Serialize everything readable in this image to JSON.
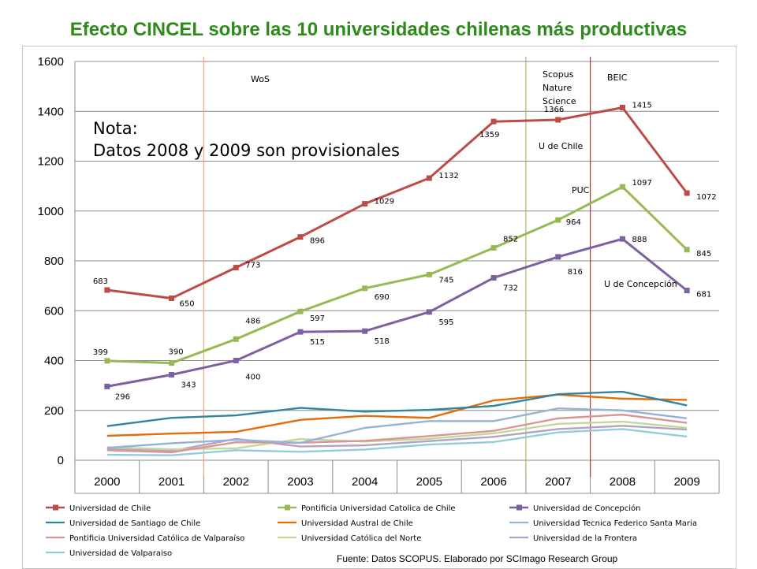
{
  "chart_data": {
    "type": "line",
    "title": "Efecto CINCEL sobre las 10 universidades chilenas más productivas",
    "x": [
      "2000",
      "2001",
      "2002",
      "2003",
      "2004",
      "2005",
      "2006",
      "2007",
      "2008",
      "2009"
    ],
    "ylim": [
      0,
      1600
    ],
    "yticks": [
      0,
      200,
      400,
      600,
      800,
      1000,
      1200,
      1400,
      1600
    ],
    "grid": true,
    "legend_position": "bottom",
    "series": [
      {
        "name": "Universidad de Chile",
        "color": "#be4b48",
        "marker": true,
        "values": [
          683,
          650,
          773,
          896,
          1029,
          1132,
          1359,
          1366,
          1415,
          1072
        ],
        "labels": [
          "683",
          "650",
          "773",
          "896",
          "1029",
          "1132",
          "1359",
          "1366",
          "1415",
          "1072"
        ]
      },
      {
        "name": "Pontificia Universidad Catolica de Chile",
        "color": "#98b954",
        "marker": true,
        "values": [
          399,
          390,
          486,
          597,
          690,
          745,
          852,
          964,
          1097,
          845
        ],
        "labels": [
          "399",
          "390",
          "486",
          "597",
          "690",
          "745",
          "852",
          "964",
          "1097",
          "845"
        ]
      },
      {
        "name": "Universidad de Concepción",
        "color": "#7d60a0",
        "marker": true,
        "values": [
          296,
          343,
          400,
          515,
          518,
          595,
          732,
          816,
          888,
          681
        ],
        "labels": [
          "296",
          "343",
          "400",
          "515",
          "518",
          "595",
          "732",
          "816",
          "888",
          "681"
        ]
      },
      {
        "name": "Universidad de Santiago de Chile",
        "color": "#31859c",
        "marker": false,
        "values": [
          137,
          170,
          180,
          210,
          195,
          202,
          218,
          265,
          275,
          220
        ]
      },
      {
        "name": "Universidad Austral de Chile",
        "color": "#e46c0a",
        "marker": false,
        "values": [
          98,
          107,
          114,
          162,
          178,
          170,
          240,
          263,
          247,
          242
        ]
      },
      {
        "name": "Universidad Tecnica Federico Santa Maria",
        "color": "#95b3d7",
        "marker": false,
        "values": [
          50,
          68,
          82,
          70,
          130,
          157,
          157,
          208,
          200,
          168
        ]
      },
      {
        "name": "Pontificia Universidad Católica de Valparaíso",
        "color": "#d99694",
        "marker": false,
        "values": [
          40,
          32,
          72,
          70,
          78,
          97,
          118,
          168,
          183,
          150
        ]
      },
      {
        "name": "Universidad Católica del Norte",
        "color": "#c3d69b",
        "marker": false,
        "values": [
          52,
          44,
          48,
          85,
          75,
          86,
          108,
          146,
          155,
          130
        ]
      },
      {
        "name": "Universidad de la Frontera",
        "color": "#b3a2c7",
        "marker": false,
        "values": [
          45,
          37,
          86,
          55,
          60,
          77,
          94,
          125,
          138,
          123
        ]
      },
      {
        "name": "Universidad de Valparaiso",
        "color": "#93cddd",
        "marker": false,
        "values": [
          22,
          20,
          40,
          34,
          43,
          63,
          73,
          112,
          125,
          95
        ]
      }
    ],
    "annotations": {
      "wos": "WoS",
      "scopus": [
        "Scopus",
        "Nature",
        "Science"
      ],
      "beic": "BEIC",
      "u_de_chile": "U de Chile",
      "puc": "PUC",
      "u_de_concepcion": "U de Concepción",
      "note_line1": "Nota:",
      "note_line2": "Datos 2008 y 2009 son provisionales"
    },
    "vlines": [
      {
        "label": "WoS",
        "x_between": [
          "2001",
          "2002"
        ],
        "color": "#f4a47a"
      },
      {
        "label": "Scopus",
        "x_between": [
          "2006",
          "2007"
        ],
        "color": "#98c16a"
      },
      {
        "label": "BEIC",
        "x_between": [
          "2007",
          "2008"
        ],
        "color": "#b0383a"
      }
    ]
  },
  "source": "Fuente: Datos SCOPUS. Elaborado por SCImago Research Group"
}
